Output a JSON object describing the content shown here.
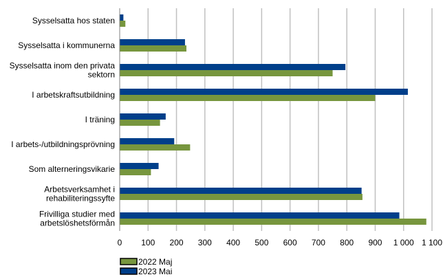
{
  "chart_data": {
    "type": "bar",
    "orientation": "horizontal",
    "categories": [
      [
        "Sysselsatta hos staten"
      ],
      [
        "Sysselsatta i kommunerna"
      ],
      [
        "Sysselsatta inom den privata",
        "sektorn"
      ],
      [
        "I arbetskraftsutbildning"
      ],
      [
        "I träning"
      ],
      [
        "I arbets-/utbildningsprövning"
      ],
      [
        "Som alterneringsvikarie"
      ],
      [
        "Arbetsverksamhet i",
        "rehabiliteringssyfte"
      ],
      [
        "Frivilliga studier med",
        "arbetslöshetsförmån"
      ]
    ],
    "series": [
      {
        "name": "2023 Mai",
        "color": "#003f8a",
        "values": [
          13,
          230,
          795,
          1015,
          162,
          192,
          137,
          852,
          985
        ]
      },
      {
        "name": "2022 Maj",
        "color": "#77963e",
        "values": [
          20,
          235,
          750,
          900,
          142,
          248,
          110,
          855,
          1080
        ]
      }
    ],
    "xlim": [
      0,
      1100
    ],
    "xticks": [
      0,
      100,
      200,
      300,
      400,
      500,
      600,
      700,
      800,
      900,
      1000,
      1100
    ],
    "xtick_labels": [
      "0",
      "100",
      "200",
      "300",
      "400",
      "500",
      "600",
      "700",
      "800",
      "900",
      "1 000",
      "1 100"
    ],
    "grid": "vertical",
    "legend": {
      "position": "bottom-left",
      "entries": [
        {
          "label": "2022 Maj",
          "color": "#77963e"
        },
        {
          "label": "2023 Mai",
          "color": "#003f8a"
        }
      ]
    }
  }
}
